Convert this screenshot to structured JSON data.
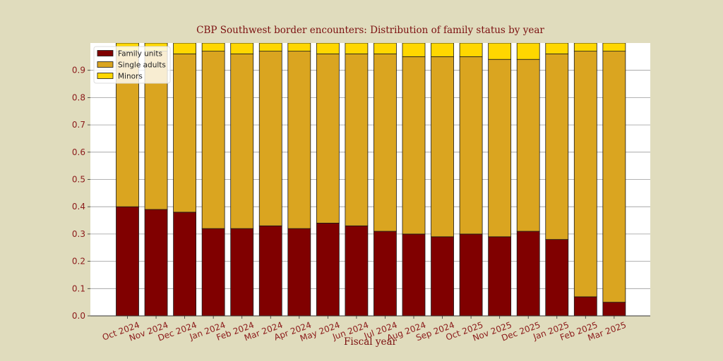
{
  "chart_data": {
    "type": "bar",
    "stacked": true,
    "normalized": true,
    "title": "CBP Southwest border encounters: Distribution of family status by year",
    "xlabel": "Fiscal year",
    "ylabel": "",
    "ylim": [
      0,
      1.0
    ],
    "yticks": [
      0.0,
      0.1,
      0.2,
      0.3,
      0.4,
      0.5,
      0.6,
      0.7,
      0.8,
      0.9
    ],
    "ytick_labels": [
      "0.0",
      "0.1",
      "0.2",
      "0.3",
      "0.4",
      "0.5",
      "0.6",
      "0.7",
      "0.8",
      "0.9"
    ],
    "grid": "y",
    "legend_position": "top-left",
    "categories": [
      "Oct 2024",
      "Nov 2024",
      "Dec 2024",
      "Jan 2024",
      "Feb 2024",
      "Mar 2024",
      "Apr 2024",
      "May 2024",
      "Jun 2024",
      "Jul 2024",
      "Aug 2024",
      "Sep 2024",
      "Oct 2025",
      "Nov 2025",
      "Dec 2025",
      "Jan 2025",
      "Feb 2025",
      "Mar 2025"
    ],
    "series": [
      {
        "name": "Family units",
        "color": "#800000",
        "values": [
          0.4,
          0.39,
          0.38,
          0.32,
          0.32,
          0.33,
          0.32,
          0.34,
          0.33,
          0.31,
          0.3,
          0.29,
          0.3,
          0.29,
          0.31,
          0.28,
          0.07,
          0.05
        ]
      },
      {
        "name": "Single adults",
        "color": "#daa520",
        "values": [
          0.57,
          0.58,
          0.58,
          0.65,
          0.64,
          0.64,
          0.65,
          0.62,
          0.63,
          0.65,
          0.65,
          0.66,
          0.65,
          0.65,
          0.63,
          0.68,
          0.9,
          0.92
        ]
      },
      {
        "name": "Minors",
        "color": "#ffd700",
        "values": [
          0.03,
          0.03,
          0.04,
          0.03,
          0.04,
          0.03,
          0.03,
          0.04,
          0.04,
          0.04,
          0.05,
          0.05,
          0.05,
          0.06,
          0.06,
          0.04,
          0.03,
          0.03
        ]
      }
    ]
  }
}
